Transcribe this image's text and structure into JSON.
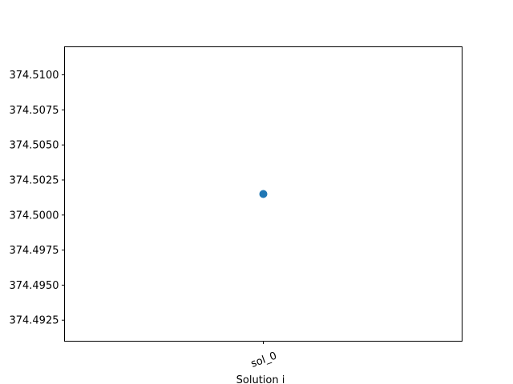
{
  "chart_data": {
    "type": "scatter",
    "title": "",
    "xlabel": "Solution i",
    "ylabel": "",
    "categories": [
      "sol_0"
    ],
    "series": [
      {
        "values": [
          374.5015
        ],
        "color": "#1f77b4"
      }
    ],
    "ylim": [
      374.491,
      374.512
    ],
    "yticks": [
      374.4925,
      374.495,
      374.4975,
      374.5,
      374.5025,
      374.505,
      374.5075,
      374.51
    ],
    "ytick_labels": [
      "374.4925",
      "374.4950",
      "374.4975",
      "374.5000",
      "374.5025",
      "374.5050",
      "374.5075",
      "374.5100"
    ],
    "xtick_rotation_deg": -20,
    "grid": false,
    "legend": "none"
  }
}
